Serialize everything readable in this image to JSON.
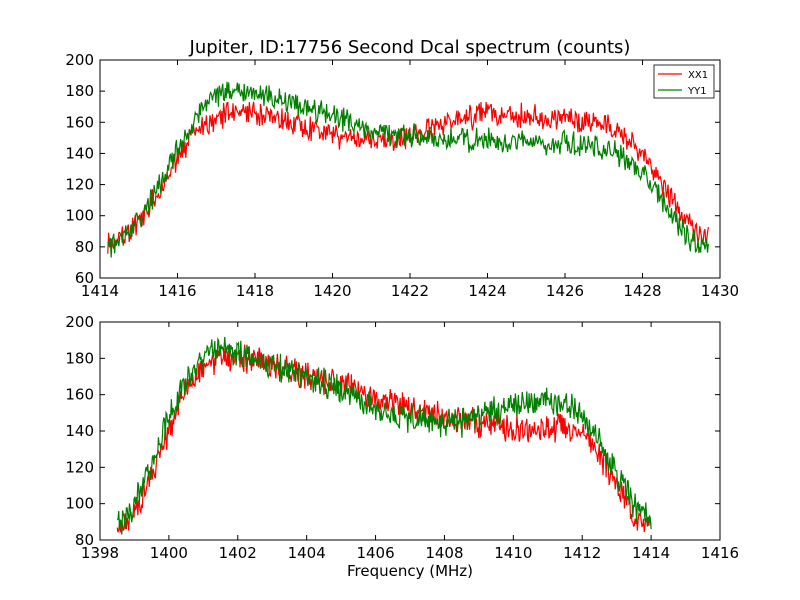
{
  "figure": {
    "title": "Jupiter, ID:17756 Second Dcal spectrum (counts)",
    "xlabel": "Frequency (MHz)"
  },
  "colors": {
    "XX1": "#ff0000",
    "YY1": "#008000"
  },
  "chart_data": [
    {
      "type": "line",
      "title": "Jupiter, ID:17756 Second Dcal spectrum (counts)",
      "xlabel": "",
      "ylabel": "",
      "xlim": [
        1414,
        1430
      ],
      "ylim": [
        60,
        200
      ],
      "xticks": [
        1414,
        1416,
        1418,
        1420,
        1422,
        1424,
        1426,
        1428,
        1430
      ],
      "yticks": [
        60,
        80,
        100,
        120,
        140,
        160,
        180,
        200
      ],
      "grid": false,
      "legend": {
        "placement": "top-right",
        "entries": [
          "XX1",
          "YY1"
        ]
      },
      "series": [
        {
          "name": "XX1",
          "color": "#ff0000",
          "x": [
            1414.2,
            1414.5,
            1415.0,
            1415.5,
            1416.0,
            1416.5,
            1417.0,
            1417.5,
            1418.0,
            1418.5,
            1419.0,
            1419.5,
            1420.0,
            1420.5,
            1421.0,
            1421.5,
            1422.0,
            1422.5,
            1423.0,
            1423.5,
            1424.0,
            1424.5,
            1425.0,
            1425.5,
            1426.0,
            1426.5,
            1427.0,
            1427.5,
            1428.0,
            1428.5,
            1429.0,
            1429.4,
            1429.7
          ],
          "y": [
            82,
            86,
            95,
            115,
            138,
            155,
            163,
            166,
            165,
            162,
            159,
            156,
            152,
            149,
            148,
            148,
            150,
            155,
            160,
            163,
            165,
            165,
            164,
            163,
            162,
            160,
            158,
            152,
            140,
            120,
            100,
            90,
            86
          ]
        },
        {
          "name": "YY1",
          "color": "#008000",
          "x": [
            1414.2,
            1414.5,
            1415.0,
            1415.5,
            1416.0,
            1416.5,
            1417.0,
            1417.5,
            1418.0,
            1418.5,
            1419.0,
            1419.5,
            1420.0,
            1420.5,
            1421.0,
            1421.5,
            1422.0,
            1422.5,
            1423.0,
            1423.5,
            1424.0,
            1424.5,
            1425.0,
            1425.5,
            1426.0,
            1426.5,
            1427.0,
            1427.5,
            1428.0,
            1428.5,
            1429.0,
            1429.4,
            1429.7
          ],
          "y": [
            80,
            85,
            97,
            118,
            142,
            165,
            176,
            180,
            179,
            176,
            172,
            168,
            164,
            159,
            155,
            152,
            151,
            150,
            149,
            149,
            148,
            148,
            147,
            146,
            146,
            145,
            143,
            138,
            128,
            110,
            90,
            82,
            79
          ]
        }
      ]
    },
    {
      "type": "line",
      "title": "",
      "xlabel": "Frequency (MHz)",
      "ylabel": "",
      "xlim": [
        1398,
        1416
      ],
      "ylim": [
        80,
        200
      ],
      "xticks": [
        1398,
        1400,
        1402,
        1404,
        1406,
        1408,
        1410,
        1412,
        1414,
        1416
      ],
      "yticks": [
        80,
        100,
        120,
        140,
        160,
        180,
        200
      ],
      "grid": false,
      "series": [
        {
          "name": "XX1",
          "color": "#ff0000",
          "x": [
            1398.5,
            1399.0,
            1399.5,
            1400.0,
            1400.5,
            1401.0,
            1401.5,
            1402.0,
            1402.5,
            1403.0,
            1403.5,
            1404.0,
            1404.5,
            1405.0,
            1405.5,
            1406.0,
            1406.5,
            1407.0,
            1407.5,
            1408.0,
            1408.5,
            1409.0,
            1409.5,
            1410.0,
            1410.5,
            1411.0,
            1411.5,
            1412.0,
            1412.5,
            1413.0,
            1413.5,
            1414.0
          ],
          "y": [
            85,
            95,
            115,
            140,
            162,
            175,
            180,
            180,
            179,
            177,
            174,
            171,
            168,
            165,
            162,
            158,
            155,
            152,
            150,
            148,
            146,
            144,
            142,
            141,
            141,
            142,
            143,
            140,
            128,
            110,
            95,
            86
          ]
        },
        {
          "name": "YY1",
          "color": "#008000",
          "x": [
            1398.5,
            1399.0,
            1399.5,
            1400.0,
            1400.5,
            1401.0,
            1401.5,
            1402.0,
            1402.5,
            1403.0,
            1403.5,
            1404.0,
            1404.5,
            1405.0,
            1405.5,
            1406.0,
            1406.5,
            1407.0,
            1407.5,
            1408.0,
            1408.5,
            1409.0,
            1409.5,
            1410.0,
            1410.5,
            1411.0,
            1411.5,
            1412.0,
            1412.5,
            1413.0,
            1413.5,
            1414.0
          ],
          "y": [
            88,
            100,
            122,
            148,
            168,
            180,
            184,
            183,
            180,
            177,
            173,
            170,
            166,
            162,
            158,
            154,
            150,
            147,
            145,
            144,
            145,
            148,
            151,
            154,
            156,
            157,
            155,
            148,
            135,
            115,
            100,
            90
          ]
        }
      ]
    }
  ]
}
